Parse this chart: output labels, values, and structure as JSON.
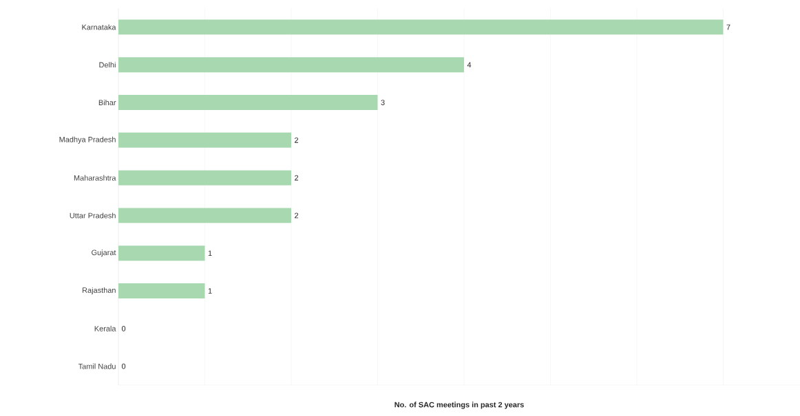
{
  "chart_data": {
    "type": "bar",
    "orientation": "horizontal",
    "xlabel": "No. of SAC meetings in past 2 years",
    "categories": [
      "Karnataka",
      "Delhi",
      "Bihar",
      "Madhya Pradesh",
      "Maharashtra",
      "Uttar Pradesh",
      "Gujarat",
      "Rajasthan",
      "Kerala",
      "Tamil Nadu"
    ],
    "values": [
      7,
      4,
      3,
      2,
      2,
      2,
      1,
      1,
      0,
      0
    ],
    "color": "#a8d8b0",
    "xticks": [
      {
        "value": 0,
        "label": null
      },
      {
        "value": 1,
        "label": null
      },
      {
        "value": 2,
        "label": null
      },
      {
        "value": 3,
        "label": null
      },
      {
        "value": 4,
        "label": null
      },
      {
        "value": 5,
        "label": null
      },
      {
        "value": 6,
        "label": null
      },
      {
        "value": 7,
        "label": null
      }
    ],
    "grid": "x",
    "data_labels": true,
    "tick_labels": "y"
  }
}
